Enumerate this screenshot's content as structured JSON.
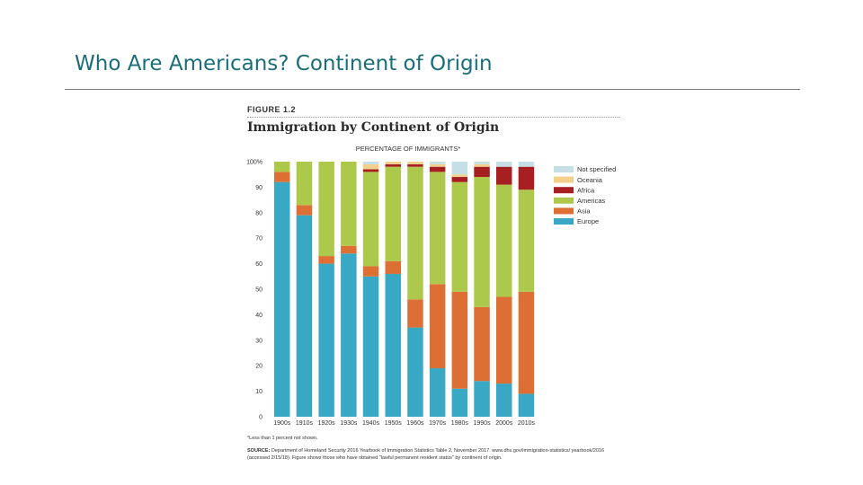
{
  "slide": {
    "title": "Who Are Americans? Continent of Origin"
  },
  "figure": {
    "label": "FIGURE 1.2",
    "title": "Immigration by Continent of Origin",
    "footnote": "*Less than 1 percent not shown.",
    "source_label": "SOURCE:",
    "source_text": "Department of Homeland Security 2016 Yearbook of Immigration Statistics Table 2, November 2017. www.dhs.gov/immigration-statistics/ yearbook/2016 (accessed 2/15/18). Figure shows those who have obtained \"lawful permanent resident status\" by continent of origin."
  },
  "colors": {
    "Europe": "#39a8c4",
    "Asia": "#dd6f34",
    "Americas": "#adc94c",
    "Africa": "#a81f22",
    "Oceania": "#f3cf8c",
    "Not specified": "#c4dfe6"
  },
  "chart_data": {
    "type": "bar",
    "stacked": true,
    "title": "Immigration by Continent of Origin",
    "subtitle": "PERCENTAGE OF IMMIGRANTS*",
    "xlabel": "",
    "ylabel": "",
    "ylim": [
      0,
      100
    ],
    "yticks": [
      0,
      10,
      20,
      30,
      40,
      50,
      60,
      70,
      80,
      90,
      100
    ],
    "ytick_labels": [
      "0",
      "10",
      "20",
      "30",
      "40",
      "50",
      "60",
      "70",
      "80",
      "90",
      "100%"
    ],
    "legend_position": "right",
    "legend_order": [
      "Not specified",
      "Oceania",
      "Africa",
      "Americas",
      "Asia",
      "Europe"
    ],
    "categories": [
      "1900s",
      "1910s",
      "1920s",
      "1930s",
      "1940s",
      "1950s",
      "1960s",
      "1970s",
      "1980s",
      "1990s",
      "2000s",
      "2010s"
    ],
    "series": [
      {
        "name": "Europe",
        "values": [
          92,
          79,
          60,
          64,
          55,
          56,
          35,
          19,
          11,
          14,
          13,
          9
        ]
      },
      {
        "name": "Asia",
        "values": [
          4,
          4,
          3,
          3,
          4,
          5,
          11,
          33,
          38,
          29,
          34,
          40
        ]
      },
      {
        "name": "Americas",
        "values": [
          4,
          17,
          37,
          33,
          37,
          37,
          52,
          44,
          43,
          51,
          44,
          40
        ]
      },
      {
        "name": "Africa",
        "values": [
          0,
          0,
          0,
          0,
          1,
          1,
          1,
          2,
          2,
          4,
          7,
          9
        ]
      },
      {
        "name": "Oceania",
        "values": [
          0,
          0,
          0,
          0,
          2,
          1,
          1,
          1,
          1,
          1,
          0,
          0
        ]
      },
      {
        "name": "Not specified",
        "values": [
          0,
          0,
          0,
          0,
          1,
          0,
          0,
          1,
          5,
          1,
          2,
          2
        ]
      }
    ]
  }
}
